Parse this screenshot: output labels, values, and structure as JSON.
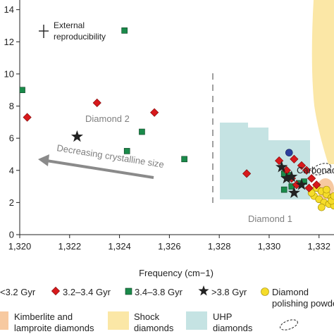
{
  "chart_data": {
    "type": "scatter",
    "xlabel": "Frequency (cm−1)",
    "ylabel": "",
    "xlim": [
      1320,
      1332.6
    ],
    "ylim": [
      0,
      14.6
    ],
    "x_ticks": [
      1320,
      1322,
      1324,
      1326,
      1328,
      1330,
      1332
    ],
    "x_tick_labels": [
      "1,320",
      "1,322",
      "1,324",
      "1,326",
      "1,328",
      "1,330",
      "1,332"
    ],
    "y_ticks": [
      0,
      2,
      4,
      6,
      8,
      10,
      12,
      14
    ],
    "y_tick_labels": [
      "0",
      "2",
      "4",
      "6",
      "8",
      "10",
      "12",
      "14"
    ],
    "grid": false,
    "annotations": {
      "reproducibility_line1": "External",
      "reproducibility_line2": "reproducibility",
      "diamond2": "Diamond 2",
      "diamond1": "Diamond 1",
      "trend": "Decreasing crystalline size"
    },
    "series": [
      {
        "name": "<3.2 Gyr",
        "marker": "circle",
        "color": "#2b3f9e",
        "x": [
          1330.8
        ],
        "y": [
          5.1
        ]
      },
      {
        "name": "3.2–3.4 Gyr",
        "marker": "diamond",
        "color": "#d7191c",
        "x": [
          1320.3,
          1323.1,
          1325.4,
          1329.1,
          1330.4,
          1330.7,
          1331.0,
          1331.3,
          1331.5,
          1331.7,
          1331.9,
          1331.1,
          1331.6,
          1330.9
        ],
        "y": [
          7.3,
          8.2,
          7.6,
          3.8,
          4.6,
          4.0,
          4.7,
          4.3,
          4.0,
          3.5,
          3.1,
          3.1,
          2.9,
          3.5
        ]
      },
      {
        "name": "3.4–3.8 Gyr",
        "marker": "square",
        "color": "#1a8a4a",
        "x": [
          1320.1,
          1324.2,
          1324.9,
          1324.3,
          1326.6,
          1330.6,
          1330.8,
          1330.6,
          1331.2,
          1331.4,
          1330.9
        ],
        "y": [
          9.0,
          12.7,
          6.4,
          5.2,
          4.7,
          3.8,
          3.7,
          2.8,
          3.2,
          3.3,
          3.0
        ]
      },
      {
        "name": ">3.8 Gyr",
        "marker": "star",
        "color": "#222222",
        "x": [
          1322.3,
          1330.5,
          1330.9,
          1331.3,
          1331.0,
          1330.7
        ],
        "y": [
          6.1,
          4.2,
          3.6,
          3.1,
          2.6,
          3.5
        ]
      },
      {
        "name": "Diamond polishing powder",
        "marker": "circle",
        "color": "#f5dc2a",
        "x": [
          1331.9,
          1332.1,
          1332.3,
          1332.5,
          1331.8,
          1332.0,
          1332.2,
          1332.4,
          1332.6,
          1331.7,
          1332.1,
          1332.5,
          1332.3,
          1332.6
        ],
        "y": [
          2.9,
          2.7,
          2.5,
          2.3,
          2.4,
          2.2,
          2.0,
          1.9,
          1.8,
          2.6,
          1.7,
          2.1,
          2.8,
          2.4
        ]
      }
    ],
    "regions": [
      {
        "name": "Kimberlite and lamproite diamonds",
        "color": "#f7c9a0"
      },
      {
        "name": "Shock diamonds",
        "color": "#fbe7a6"
      },
      {
        "name": "UHP diamonds",
        "color": "#c5e3e3"
      },
      {
        "name": "Carbonado",
        "color": "none"
      }
    ],
    "legend": {
      "placement": "bottom",
      "entries": [
        {
          "label": "<3.2 Gyr",
          "marker": "circle",
          "color": "#2b3f9e"
        },
        {
          "label": "3.2–3.4 Gyr",
          "marker": "diamond",
          "color": "#d7191c"
        },
        {
          "label": "3.4–3.8 Gyr",
          "marker": "square",
          "color": "#1a8a4a"
        },
        {
          "label": ">3.8 Gyr",
          "marker": "star",
          "color": "#222222"
        },
        {
          "label_line1": "Diamond",
          "label_line2": "polishing powder",
          "marker": "circle",
          "color": "#f5dc2a"
        },
        {
          "label_line1": "Kimberlite and",
          "label_line2": "lamproite diamonds",
          "marker": "patch",
          "color": "#f7c9a0"
        },
        {
          "label_line1": "Shock",
          "label_line2": "diamonds",
          "marker": "patch",
          "color": "#fbe7a6"
        },
        {
          "label_line1": "UHP",
          "label_line2": "diamonds",
          "marker": "patch",
          "color": "#c5e3e3"
        },
        {
          "label": "Carbonado",
          "marker": "dashed-ellipse",
          "color": "none"
        }
      ]
    }
  }
}
